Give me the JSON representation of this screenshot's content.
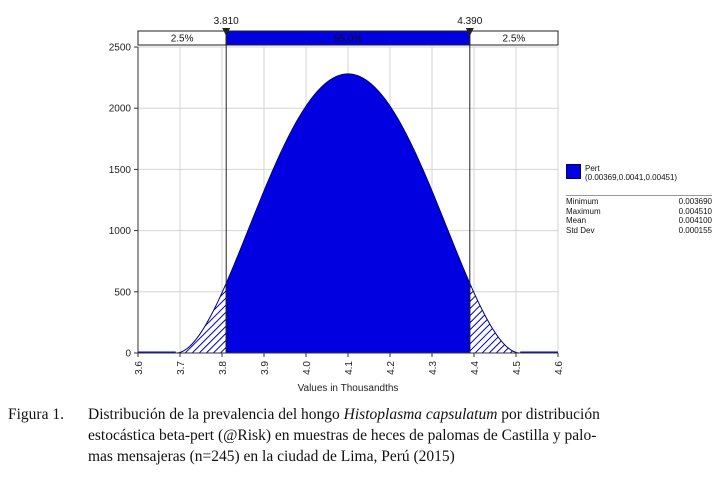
{
  "chart_data": {
    "type": "area",
    "distribution": {
      "name": "Pert",
      "min": 3.69,
      "mode": 4.1,
      "max": 4.51
    },
    "peak_density": 2280,
    "xlabel": "Values in Thousandths",
    "xlim": [
      3.6,
      4.6
    ],
    "ylim": [
      0,
      2500
    ],
    "x_ticks": [
      "3.6",
      "3.7",
      "3.8",
      "3.9",
      "4.0",
      "4.1",
      "4.2",
      "4.3",
      "4.4",
      "4.5",
      "4.6"
    ],
    "y_ticks": [
      "0",
      "500",
      "1000",
      "1500",
      "2000",
      "2500"
    ],
    "grid": true,
    "markers": [
      {
        "label": "3.810",
        "value": 3.81
      },
      {
        "label": "4.390",
        "value": 4.39
      }
    ],
    "bands": [
      {
        "label": "2.5%",
        "from": 3.6,
        "to": 3.81
      },
      {
        "label": "95.0%",
        "from": 3.81,
        "to": 4.39
      },
      {
        "label": "2.5%",
        "from": 4.39,
        "to": 4.6
      }
    ],
    "legend_placement": "right",
    "colors": {
      "fill": "#0000e0",
      "edge": "#00007a",
      "tail_hatch": "#0000c0"
    }
  },
  "legend": {
    "title": "Pert",
    "params": "(0.00369,0.0041,0.00451)",
    "stats": [
      {
        "label": "Minimum",
        "value": "0.003690"
      },
      {
        "label": "Maximum",
        "value": "0.004510"
      },
      {
        "label": "Mean",
        "value": "0.004100"
      },
      {
        "label": "Std Dev",
        "value": "0.000155"
      }
    ]
  },
  "caption": {
    "label": "Figura 1.",
    "pre": "Distribución de la prevalencia del hongo ",
    "species": "Histoplasma capsulatum",
    "post": " por distribución",
    "line2": "estocástica beta-pert (@Risk) en muestras de heces de palomas de Castilla y palo-",
    "line3": "mas mensajeras (n=245) en la ciudad de Lima, Perú (2015)"
  }
}
